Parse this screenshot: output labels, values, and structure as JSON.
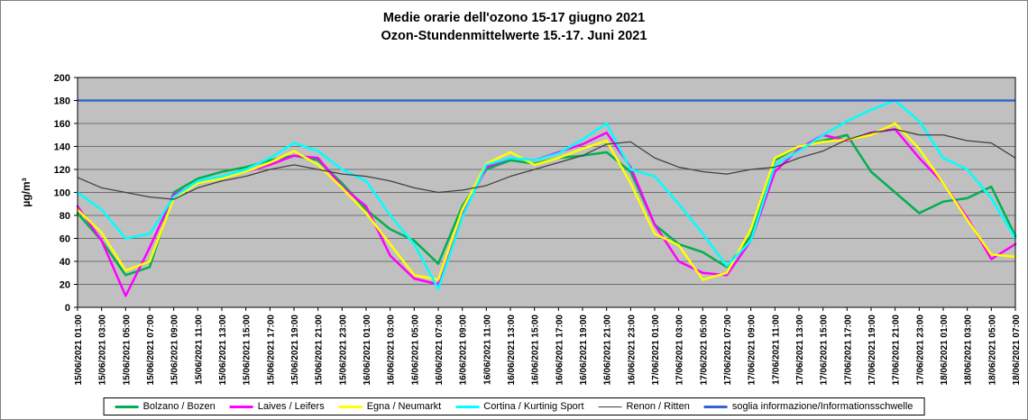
{
  "title": {
    "line1": "Medie orarie dell'ozono  15-17 giugno 2021",
    "line2": "Ozon-Stundenmittelwerte 15.-17. Juni 2021"
  },
  "chart_data": {
    "type": "line",
    "title": "Medie orarie dell'ozono 15-17 giugno 2021 / Ozon-Stundenmittelwerte 15.-17. Juni 2021",
    "xlabel": "",
    "ylabel": "µg/m³",
    "ylim": [
      0,
      200
    ],
    "ytick_step": 20,
    "grid": true,
    "legend_position": "bottom",
    "plot_bg": "#c0c0c0",
    "grid_color": "#555555",
    "categories": [
      "15/06/2021 01:00",
      "15/06/2021 03:00",
      "15/06/2021 05:00",
      "15/06/2021 07:00",
      "15/06/2021 09:00",
      "15/06/2021 11:00",
      "15/06/2021 13:00",
      "15/06/2021 15:00",
      "15/06/2021 17:00",
      "15/06/2021 19:00",
      "15/06/2021 21:00",
      "15/06/2021 23:00",
      "16/06/2021 01:00",
      "16/06/2021 03:00",
      "16/06/2021 05:00",
      "16/06/2021 07:00",
      "16/06/2021 09:00",
      "16/06/2021 11:00",
      "16/06/2021 13:00",
      "16/06/2021 15:00",
      "16/06/2021 17:00",
      "16/06/2021 19:00",
      "16/06/2021 21:00",
      "16/06/2021 23:00",
      "17/06/2021 01:00",
      "17/06/2021 03:00",
      "17/06/2021 05:00",
      "17/06/2021 07:00",
      "17/06/2021 09:00",
      "17/06/2021 11:00",
      "17/06/2021 13:00",
      "17/06/2021 15:00",
      "17/06/2021 17:00",
      "17/06/2021 19:00",
      "17/06/2021 21:00",
      "17/06/2021 23:00",
      "18/06/2021 01:00",
      "18/06/2021 03:00",
      "18/06/2021 05:00",
      "18/06/2021 07:00"
    ],
    "series": [
      {
        "name": "Bolzano / Bozen",
        "color": "#00b050",
        "width": 2.5,
        "values": [
          82,
          58,
          28,
          35,
          100,
          112,
          118,
          122,
          128,
          132,
          128,
          108,
          85,
          68,
          58,
          38,
          88,
          120,
          128,
          125,
          130,
          132,
          135,
          118,
          72,
          55,
          48,
          35,
          62,
          128,
          140,
          145,
          150,
          118,
          100,
          82,
          92,
          95,
          105,
          62
        ]
      },
      {
        "name": "Laives / Leifers",
        "color": "#ff00ff",
        "width": 2.5,
        "values": [
          88,
          58,
          10,
          52,
          98,
          108,
          112,
          118,
          124,
          132,
          130,
          105,
          88,
          45,
          25,
          20,
          80,
          122,
          130,
          128,
          135,
          142,
          152,
          122,
          72,
          40,
          30,
          28,
          58,
          118,
          138,
          150,
          145,
          152,
          155,
          130,
          108,
          78,
          42,
          55
        ]
      },
      {
        "name": "Egna / Neumarkt",
        "color": "#ffff00",
        "width": 2.5,
        "values": [
          85,
          65,
          32,
          40,
          95,
          108,
          112,
          118,
          126,
          136,
          124,
          104,
          82,
          55,
          28,
          24,
          85,
          125,
          135,
          124,
          130,
          138,
          145,
          108,
          64,
          54,
          24,
          30,
          68,
          130,
          140,
          144,
          146,
          150,
          160,
          138,
          108,
          76,
          46,
          44
        ]
      },
      {
        "name": "Cortina  / Kurtinig Sport",
        "color": "#00ffff",
        "width": 2.5,
        "values": [
          100,
          85,
          60,
          64,
          96,
          110,
          114,
          120,
          130,
          143,
          136,
          120,
          110,
          80,
          55,
          16,
          78,
          124,
          130,
          128,
          134,
          146,
          160,
          120,
          114,
          90,
          64,
          36,
          58,
          124,
          136,
          150,
          162,
          172,
          180,
          162,
          130,
          120,
          95,
          60
        ]
      },
      {
        "name": "Renon / Ritten",
        "color": "#404040",
        "width": 1.25,
        "values": [
          113,
          104,
          100,
          96,
          94,
          104,
          110,
          114,
          120,
          124,
          120,
          116,
          114,
          110,
          104,
          100,
          102,
          106,
          114,
          120,
          126,
          132,
          142,
          144,
          130,
          122,
          118,
          116,
          120,
          122,
          130,
          136,
          146,
          152,
          155,
          150,
          150,
          145,
          143,
          130
        ]
      }
    ],
    "threshold": {
      "name": "soglia informazione/Informationsschwelle",
      "value": 180,
      "color": "#3366cc",
      "width": 2.5
    }
  }
}
